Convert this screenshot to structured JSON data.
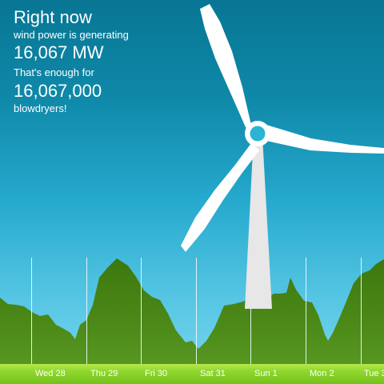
{
  "panel": {
    "heading": "Right now",
    "line1": "wind power is generating",
    "power_value": "16,067 MW",
    "line2": "That's enough for",
    "count_value": "16,067,000",
    "line3": "blowdryers!"
  },
  "chart": {
    "day_labels": [
      "Wed 28",
      "Thu 29",
      "Fri 30",
      "Sat 31",
      "Sun 1",
      "Mon 2",
      "Tue 3"
    ]
  },
  "colors": {
    "sky_top": "#087694",
    "sky_bottom": "#7ed7ef",
    "area_top": "#3f7e0f",
    "area_bottom": "#53921d",
    "strip": "#91d82f",
    "text": "#ffffff"
  },
  "icons": {
    "turbine": "wind-turbine-icon"
  }
}
